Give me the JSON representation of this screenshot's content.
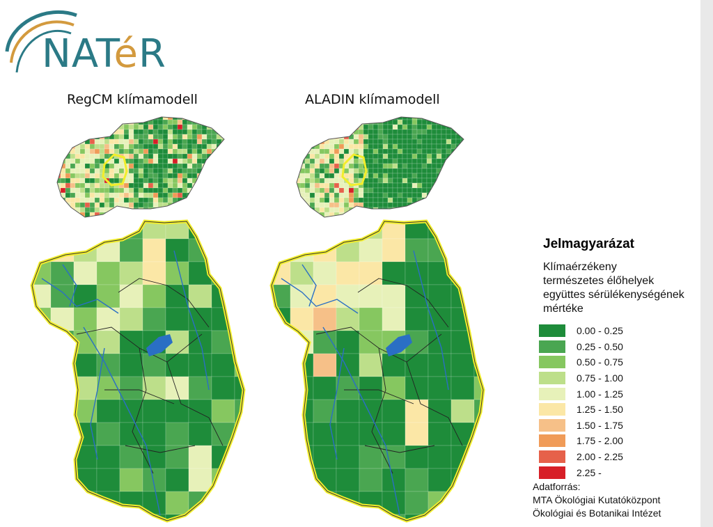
{
  "logo": {
    "n_a_t": "NAT",
    "e": "é",
    "r": "R"
  },
  "maps": {
    "left_title": "RegCM klímamodell",
    "right_title": "ALADIN klímamodell"
  },
  "legend": {
    "title": "Jelmagyarázat",
    "subtitle_lines": [
      "Klímaérzékeny",
      "természetes élőhelyek",
      "együttes sérülékenységének",
      "mértéke"
    ],
    "classes": [
      {
        "label": "0.00 - 0.25",
        "color": "#1e8c3a"
      },
      {
        "label": "0.25 - 0.50",
        "color": "#4aa651"
      },
      {
        "label": "0.50 - 0.75",
        "color": "#86c760"
      },
      {
        "label": "0.75 - 1.00",
        "color": "#bddf8a"
      },
      {
        "label": "1.00 - 1.25",
        "color": "#e7f1b9"
      },
      {
        "label": "1.25 - 1.50",
        "color": "#fbe7a6"
      },
      {
        "label": "1.50 - 1.75",
        "color": "#f6c088"
      },
      {
        "label": "1.75 - 2.00",
        "color": "#f09b58"
      },
      {
        "label": "2.00 - 2.25",
        "color": "#e6614a"
      },
      {
        "label": "2.25 -",
        "color": "#d71f27"
      }
    ]
  },
  "source": {
    "line1": "Adatforrás:",
    "line2": "MTA Ökológiai Kutatóközpont",
    "line3": "Ökológiai és Botanikai Intézet"
  },
  "colors": {
    "river": "#2a6fc4",
    "border_highlight": "#f2ee2b",
    "brand_teal": "#2b7a86",
    "brand_orange": "#d39a3e"
  }
}
